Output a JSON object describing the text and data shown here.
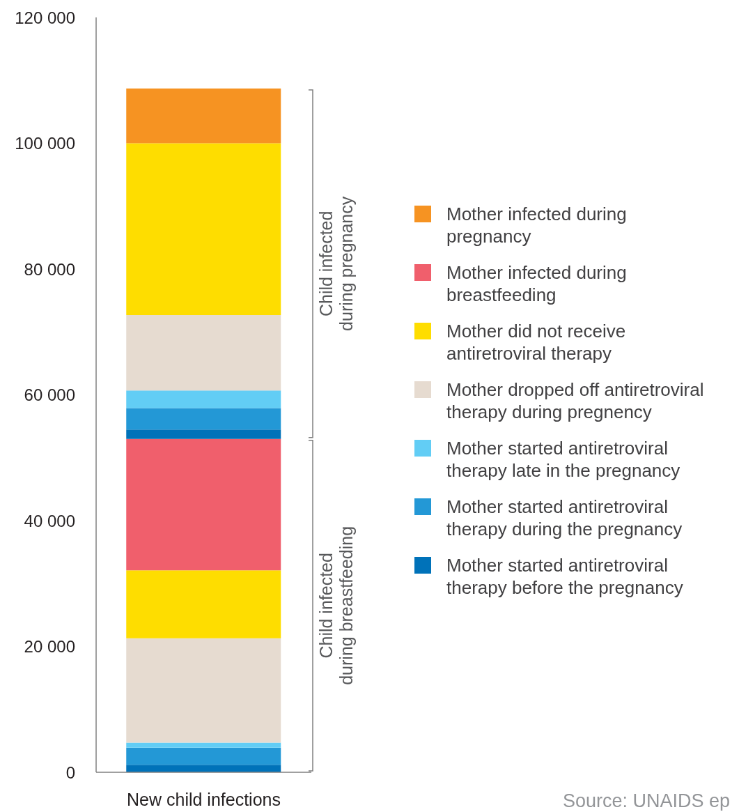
{
  "chart_data": {
    "type": "bar",
    "categories": [
      "New child infections"
    ],
    "stacked": true,
    "series": [
      {
        "name": "Mother started antiretroviral therapy before the pregnancy",
        "color": "#0072b9",
        "values": [
          1200
        ]
      },
      {
        "name": "Mother started antiretroviral therapy during the pregnancy",
        "color": "#2398d6",
        "values": [
          2700
        ]
      },
      {
        "name": "Mother started antiretroviral therapy late in the pregnancy",
        "color": "#62cdf5",
        "values": [
          800
        ]
      },
      {
        "name": "Mother dropped off antiretroviral therapy during pregnency",
        "color": "#e6dbd0",
        "values": [
          16600
        ]
      },
      {
        "name": "Mother did not receive antiretroviral therapy",
        "color": "#fedd00",
        "values": [
          10800
        ]
      },
      {
        "name": "Mother infected during breastfeeding",
        "color": "#f05f6c",
        "values": [
          20900
        ]
      },
      {
        "color": "#0072b9",
        "values": [
          1500
        ]
      },
      {
        "color": "#2398d6",
        "values": [
          3400
        ]
      },
      {
        "color": "#62cdf5",
        "values": [
          2800
        ]
      },
      {
        "color": "#e6dbd0",
        "values": [
          12000
        ]
      },
      {
        "color": "#fedd00",
        "values": [
          27300
        ]
      },
      {
        "name": "Mother infected during pregnancy",
        "color": "#f69322",
        "values": [
          8700
        ]
      }
    ],
    "ylim": [
      0,
      120000
    ],
    "yticks": [
      0,
      {
        "value": 20000,
        "label": "20 000"
      },
      {
        "value": 40000,
        "label": "40 000"
      },
      {
        "value": 60000,
        "label": "60 000"
      },
      {
        "value": 80000,
        "label": "80 000"
      },
      {
        "value": 100000,
        "label": "100 000"
      },
      {
        "value": 120000,
        "label": "120 000"
      }
    ],
    "legend": "right",
    "annotations": [
      "Child infected during pregnancy",
      "Child infected during breastfeeding",
      "Source: UNAIDS ep"
    ]
  }
}
